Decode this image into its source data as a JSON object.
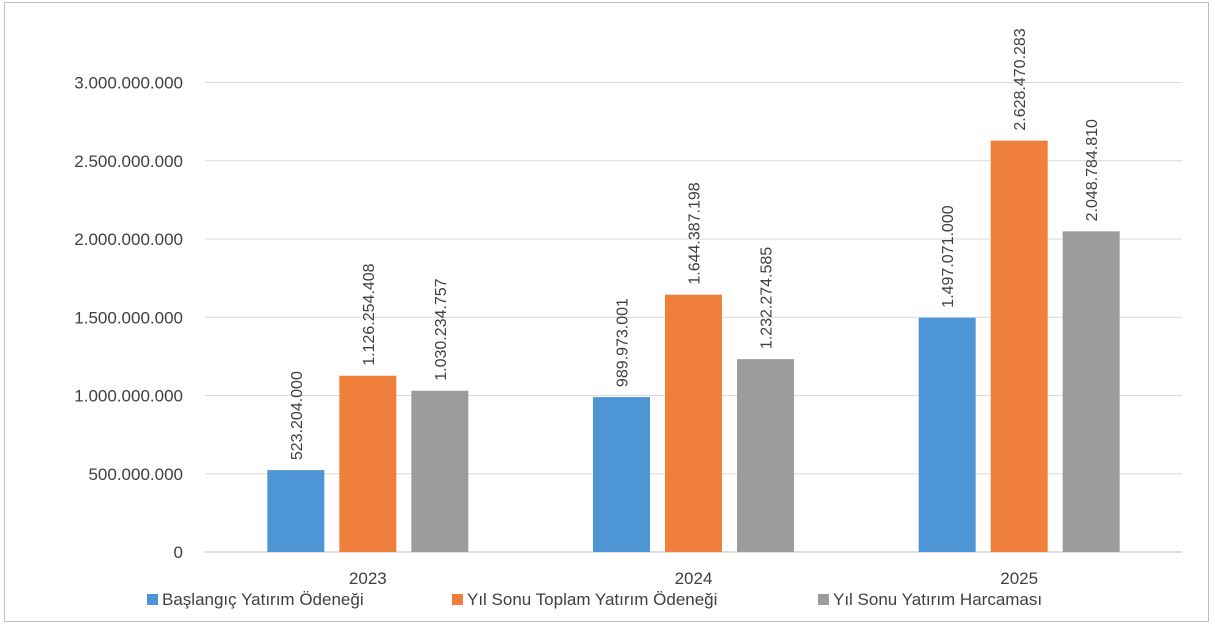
{
  "chart_data": {
    "type": "bar",
    "title": "",
    "xlabel": "",
    "ylabel": "",
    "categories": [
      "2023",
      "2024",
      "2025"
    ],
    "series": [
      {
        "name": "Başlangıç Yatırım Ödeneği",
        "color": "#4e95d5",
        "values": [
          523204000,
          989973001,
          1497071000
        ],
        "labels": [
          "523.204.000",
          "989.973.001",
          "1.497.071.000"
        ]
      },
      {
        "name": "Yıl Sonu Toplam Yatırım Ödeneği",
        "color": "#ef7f3b",
        "values": [
          1126254408,
          1644387198,
          2628470283
        ],
        "labels": [
          "1.126.254.408",
          "1.644.387.198",
          "2.628.470.283"
        ]
      },
      {
        "name": "Yıl Sonu Yatırım Harcaması",
        "color": "#9c9c9c",
        "values": [
          1030234757,
          1232274585,
          2048784810
        ],
        "labels": [
          "1.030.234.757",
          "1.232.274.585",
          "2.048.784.810"
        ]
      }
    ],
    "ylim": [
      0,
      3000000000
    ],
    "y_ticks": [
      0,
      500000000,
      1000000000,
      1500000000,
      2000000000,
      2500000000,
      3000000000
    ],
    "y_tick_labels": [
      "0",
      "500.000.000",
      "1.000.000.000",
      "1.500.000.000",
      "2.000.000.000",
      "2.500.000.000",
      "3.000.000.000"
    ],
    "grid": true,
    "legend_position": "bottom-left",
    "gridline_color": "#d9d9d9",
    "axis_color": "#bfbfbf"
  }
}
